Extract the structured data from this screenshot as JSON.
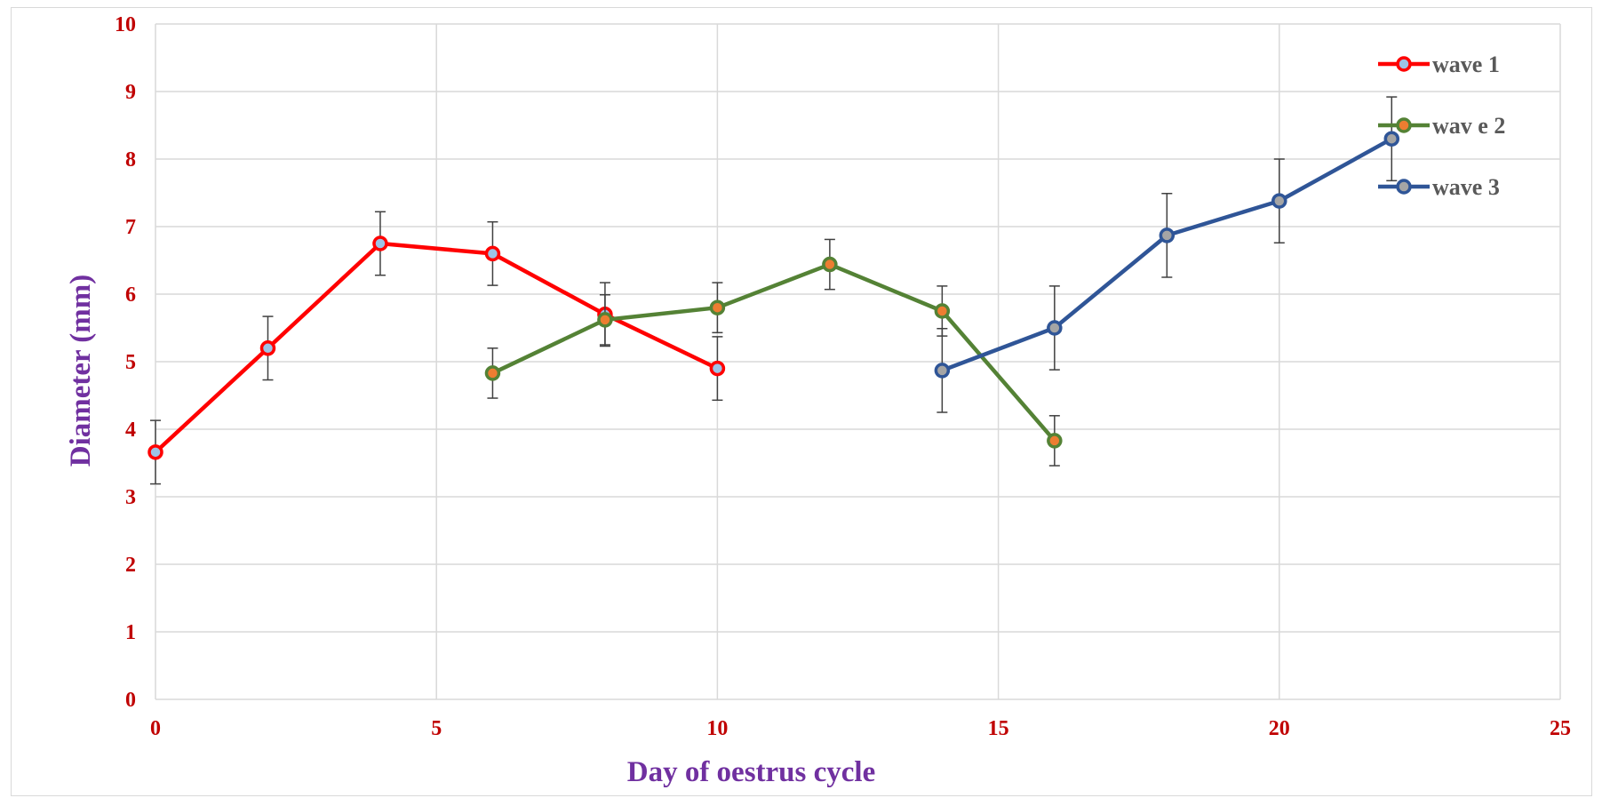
{
  "chart_data": {
    "type": "line",
    "xlabel": "Day of oestrus cycle",
    "ylabel": "Diameter (mm)",
    "xlim": [
      0,
      25
    ],
    "ylim": [
      0,
      10
    ],
    "xticks": [
      0,
      5,
      10,
      15,
      20,
      25
    ],
    "yticks": [
      0,
      1,
      2,
      3,
      4,
      5,
      6,
      7,
      8,
      9,
      10
    ],
    "grid": true,
    "legend_position": "top-right",
    "colors": {
      "tick_labels": "#c00000",
      "axis_titles": "#7030a0",
      "gridlines": "#d9d9d9",
      "error_bars": "#404040"
    },
    "series": [
      {
        "name": "wave 1",
        "color": "#ff0000",
        "marker_fill": "#9dc3e6",
        "points": [
          {
            "x": 0,
            "y": 3.66,
            "err": 0.47
          },
          {
            "x": 2,
            "y": 5.2,
            "err": 0.47
          },
          {
            "x": 4,
            "y": 6.75,
            "err": 0.47
          },
          {
            "x": 6,
            "y": 6.6,
            "err": 0.47
          },
          {
            "x": 8,
            "y": 5.7,
            "err": 0.47
          },
          {
            "x": 10,
            "y": 4.9,
            "err": 0.47
          }
        ]
      },
      {
        "name": "wav e 2",
        "color": "#548235",
        "marker_fill": "#ed7d31",
        "points": [
          {
            "x": 6,
            "y": 4.83,
            "err": 0.37
          },
          {
            "x": 8,
            "y": 5.62,
            "err": 0.37
          },
          {
            "x": 10,
            "y": 5.8,
            "err": 0.37
          },
          {
            "x": 12,
            "y": 6.44,
            "err": 0.37
          },
          {
            "x": 14,
            "y": 5.75,
            "err": 0.37
          },
          {
            "x": 16,
            "y": 3.83,
            "err": 0.37
          }
        ]
      },
      {
        "name": "wave 3",
        "color": "#2f5597",
        "marker_fill": "#a5a5a5",
        "points": [
          {
            "x": 14,
            "y": 4.87,
            "err": 0.62
          },
          {
            "x": 16,
            "y": 5.5,
            "err": 0.62
          },
          {
            "x": 18,
            "y": 6.87,
            "err": 0.62
          },
          {
            "x": 20,
            "y": 7.38,
            "err": 0.62
          },
          {
            "x": 22,
            "y": 8.3,
            "err": 0.62
          }
        ]
      }
    ]
  }
}
